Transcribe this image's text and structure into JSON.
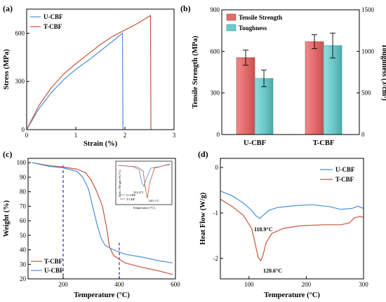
{
  "chart_data": [
    {
      "panel": "(a)",
      "type": "line",
      "xlabel": "Strain (%)",
      "ylabel": "Stress (MPa)",
      "xlim": [
        0,
        3
      ],
      "ylim": [
        0,
        750
      ],
      "xticks": [
        0,
        1,
        2,
        3
      ],
      "yticks": [
        0,
        300,
        600
      ],
      "legend": "top-left",
      "series": [
        {
          "name": "U-CBF",
          "color": "#4a90d9",
          "points": [
            [
              0,
              0
            ],
            [
              0.25,
              130
            ],
            [
              0.5,
              230
            ],
            [
              0.75,
              310
            ],
            [
              1.0,
              375
            ],
            [
              1.25,
              430
            ],
            [
              1.5,
              490
            ],
            [
              1.75,
              550
            ],
            [
              1.95,
              600
            ],
            [
              1.96,
              0
            ]
          ]
        },
        {
          "name": "T-CBF",
          "color": "#c8553d",
          "points": [
            [
              0,
              0
            ],
            [
              0.25,
              150
            ],
            [
              0.5,
              260
            ],
            [
              0.75,
              345
            ],
            [
              1.0,
              410
            ],
            [
              1.25,
              470
            ],
            [
              1.5,
              530
            ],
            [
              1.75,
              580
            ],
            [
              2.0,
              620
            ],
            [
              2.25,
              660
            ],
            [
              2.52,
              710
            ],
            [
              2.53,
              0
            ]
          ]
        }
      ]
    },
    {
      "panel": "(b)",
      "type": "bar",
      "categories": [
        "U-CBF",
        "T-CBF"
      ],
      "ylabel": "Tensile Strength (MPa)",
      "y2label": "Toughness (J/cm³)",
      "ylim": [
        0,
        900
      ],
      "y2lim": [
        0,
        1500
      ],
      "yticks": [
        0,
        300,
        600,
        900
      ],
      "y2ticks": [
        0,
        500,
        1000,
        1500
      ],
      "legend": "top-left",
      "series": [
        {
          "name": "Tensile Strength",
          "color": "#e46b6b",
          "axis": "left",
          "values": [
            555,
            670
          ],
          "errors": [
            55,
            50
          ]
        },
        {
          "name": "Toughness",
          "color": "#6fcaca",
          "axis": "right",
          "values": [
            675,
            1070
          ],
          "errors": [
            100,
            150
          ]
        }
      ]
    },
    {
      "panel": "(c)",
      "type": "line",
      "xlabel": "Temperature (°C)",
      "ylabel": "Weight (%)",
      "xlim": [
        75,
        600
      ],
      "ylim": [
        20,
        103
      ],
      "xticks": [
        200,
        400,
        600
      ],
      "yticks": [
        20,
        30,
        40,
        50,
        60,
        70,
        80,
        90,
        100
      ],
      "legend": "bottom-left",
      "vlines": [
        200,
        400
      ],
      "series": [
        {
          "name": "T-CBF",
          "color": "#c8553d",
          "points": [
            [
              90,
              100
            ],
            [
              150,
              98
            ],
            [
              200,
              97
            ],
            [
              250,
              95.5
            ],
            [
              280,
              93
            ],
            [
              300,
              88
            ],
            [
              320,
              80
            ],
            [
              340,
              70
            ],
            [
              355,
              55
            ],
            [
              365,
              42
            ],
            [
              380,
              36
            ],
            [
              420,
              31
            ],
            [
              480,
              28
            ],
            [
              540,
              25.5
            ],
            [
              590,
              23
            ]
          ]
        },
        {
          "name": "U-CBF",
          "color": "#4a90d9",
          "points": [
            [
              90,
              100
            ],
            [
              150,
              97.5
            ],
            [
              200,
              96.5
            ],
            [
              250,
              94
            ],
            [
              270,
              90
            ],
            [
              290,
              82
            ],
            [
              305,
              70
            ],
            [
              320,
              58
            ],
            [
              335,
              48
            ],
            [
              350,
              43
            ],
            [
              380,
              40
            ],
            [
              420,
              37
            ],
            [
              480,
              35
            ],
            [
              540,
              32.5
            ],
            [
              590,
              31
            ]
          ]
        }
      ],
      "inset": {
        "xlabel": "Temperature (°C)",
        "ylabel": "Deriv. Weight (%/°C)",
        "series": [
          "U-CBF",
          "T-CBF"
        ],
        "annotations": [
          "322.4°C",
          "345.1°C"
        ]
      }
    },
    {
      "panel": "(d)",
      "type": "line",
      "xlabel": "Temperature (°C)",
      "ylabel": "Heat Flow (W/g)",
      "xlim": [
        50,
        300
      ],
      "ylim": [
        -2.45,
        0.2
      ],
      "xticks": [
        100,
        200,
        300
      ],
      "yticks": [
        -2,
        -1,
        0
      ],
      "legend": "top-right",
      "annotations": [
        {
          "text": "118.9°C",
          "x": 118.9,
          "y": -1.12
        },
        {
          "text": "120.6°C",
          "x": 120.6,
          "y": -2.05
        }
      ],
      "series": [
        {
          "name": "U-CBF",
          "color": "#4a90d9",
          "points": [
            [
              50,
              -0.52
            ],
            [
              70,
              -0.62
            ],
            [
              90,
              -0.78
            ],
            [
              105,
              -0.95
            ],
            [
              112,
              -1.06
            ],
            [
              118.9,
              -1.12
            ],
            [
              125,
              -1.05
            ],
            [
              135,
              -0.94
            ],
            [
              150,
              -0.88
            ],
            [
              180,
              -0.84
            ],
            [
              210,
              -0.82
            ],
            [
              240,
              -0.86
            ],
            [
              260,
              -0.92
            ],
            [
              280,
              -0.9
            ],
            [
              290,
              -0.85
            ],
            [
              300,
              -0.9
            ]
          ]
        },
        {
          "name": "T-CBF",
          "color": "#c8553d",
          "points": [
            [
              50,
              -0.7
            ],
            [
              70,
              -0.85
            ],
            [
              90,
              -1.05
            ],
            [
              105,
              -1.35
            ],
            [
              112,
              -1.75
            ],
            [
              116,
              -1.98
            ],
            [
              120.6,
              -2.05
            ],
            [
              124,
              -1.95
            ],
            [
              130,
              -1.65
            ],
            [
              140,
              -1.45
            ],
            [
              160,
              -1.34
            ],
            [
              190,
              -1.28
            ],
            [
              230,
              -1.26
            ],
            [
              260,
              -1.26
            ],
            [
              275,
              -1.22
            ],
            [
              285,
              -1.1
            ],
            [
              295,
              -1.08
            ],
            [
              300,
              -1.1
            ]
          ]
        }
      ]
    }
  ]
}
